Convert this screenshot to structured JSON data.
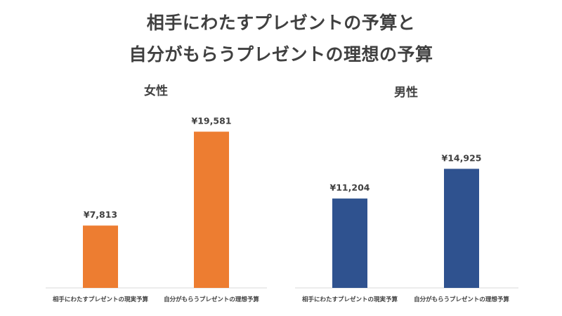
{
  "title": {
    "line1": "相手にわたすプレゼントの予算と",
    "line2": "自分がもらうプレゼントの理想の予算"
  },
  "colors": {
    "female_bar": "#ED7D31",
    "male_bar": "#2F528F",
    "axis": "#D9D9D9",
    "text": "#404040"
  },
  "chart_data": [
    {
      "type": "bar",
      "title": "女性",
      "categories": [
        "相手にわたすプレゼントの現実予算",
        "自分がもらうプレゼントの理想予算"
      ],
      "values": [
        7813,
        19581
      ],
      "data_labels": [
        "¥7,813",
        "¥19,581"
      ],
      "ylim": [
        0,
        22000
      ],
      "color": "#ED7D31",
      "grid": false
    },
    {
      "type": "bar",
      "title": "男性",
      "categories": [
        "相手にわたすプレゼントの現実予算",
        "自分がもらうプレゼントの理想予算"
      ],
      "values": [
        11204,
        14925
      ],
      "data_labels": [
        "¥11,204",
        "¥14,925"
      ],
      "ylim": [
        0,
        22000
      ],
      "color": "#2F528F",
      "grid": false
    }
  ]
}
